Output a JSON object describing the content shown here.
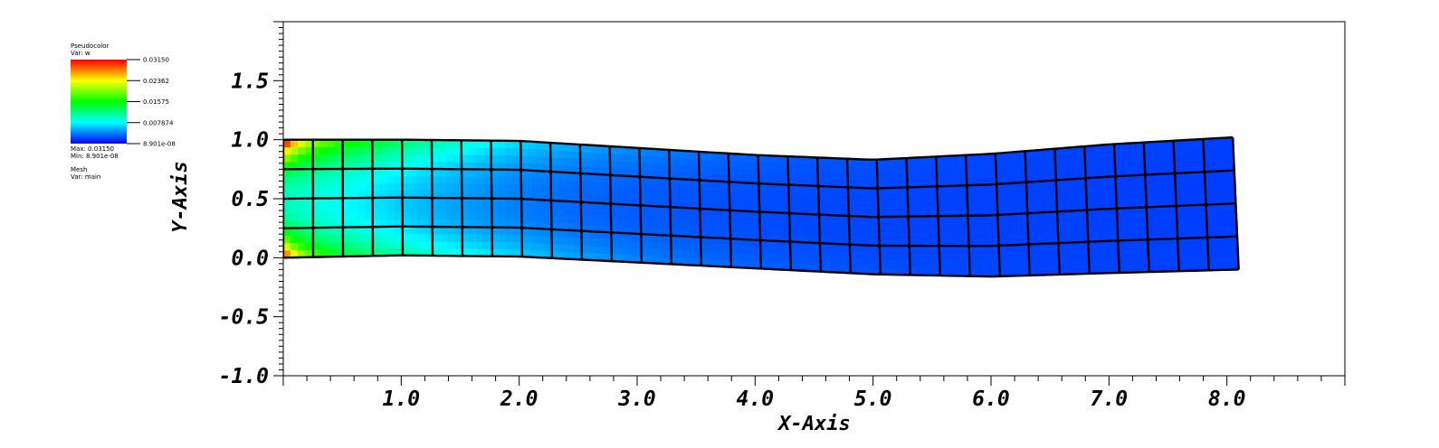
{
  "legend": {
    "plot_type": "Pseudocolor",
    "var_label": "Var: w",
    "colorbar_ticks": [
      "0.03150",
      "0.02362",
      "0.01575",
      "0.007874",
      "8.901e-08"
    ],
    "max_label": "Max: 0.03150",
    "min_label": "Min: 8.901e-08",
    "mesh_label": "Mesh",
    "mesh_var_label": "Var: main",
    "colormap": [
      "#0000ff",
      "#00ffff",
      "#00ff00",
      "#ffff00",
      "#ff0000"
    ]
  },
  "chart_data": {
    "type": "heatmap",
    "description_of_field": "pseudocolor of variable w on a deformed structured mesh",
    "xlabel": "X-Axis",
    "ylabel": "Y-Axis",
    "xlim": [
      0.0,
      9.0
    ],
    "ylim": [
      -1.0,
      2.0
    ],
    "x_ticks": [
      1.0,
      2.0,
      3.0,
      4.0,
      5.0,
      6.0,
      7.0,
      8.0
    ],
    "x_tick_labels": [
      "1.0",
      "2.0",
      "3.0",
      "4.0",
      "5.0",
      "6.0",
      "7.0",
      "8.0"
    ],
    "y_ticks": [
      1.5,
      1.0,
      0.5,
      0.0,
      -0.5,
      -1.0
    ],
    "y_tick_labels": [
      "1.5",
      "1.0",
      "0.5",
      "0.0",
      "-0.5",
      "-1.0"
    ],
    "value_range": [
      8.901e-08,
      0.0315
    ],
    "mesh": {
      "columns": 32,
      "rows": 4,
      "bottom_edge": [
        [
          0.0,
          0.0
        ],
        [
          1.0,
          0.02
        ],
        [
          2.0,
          0.01
        ],
        [
          3.0,
          -0.04
        ],
        [
          4.0,
          -0.09
        ],
        [
          5.0,
          -0.14
        ],
        [
          6.0,
          -0.16
        ],
        [
          7.0,
          -0.13
        ],
        [
          8.1,
          -0.1
        ]
      ],
      "top_edge": [
        [
          0.0,
          1.0
        ],
        [
          1.0,
          1.0
        ],
        [
          2.0,
          0.99
        ],
        [
          3.0,
          0.93
        ],
        [
          4.0,
          0.87
        ],
        [
          5.0,
          0.83
        ],
        [
          6.0,
          0.88
        ],
        [
          7.0,
          0.96
        ],
        [
          8.05,
          1.02
        ]
      ]
    }
  }
}
